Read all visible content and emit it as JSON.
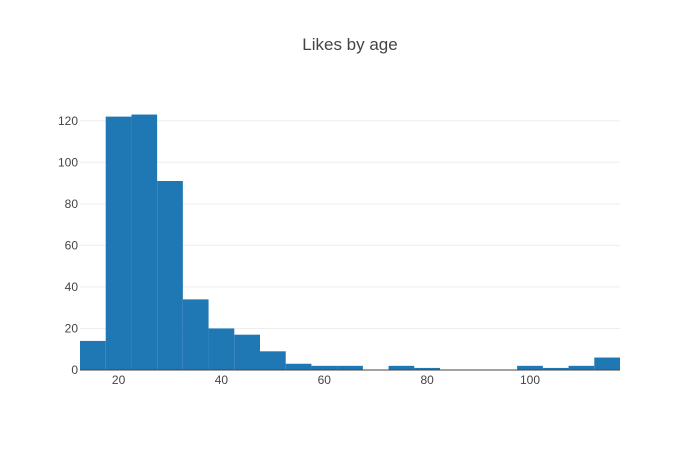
{
  "chart_data": {
    "type": "bar",
    "title": "Likes by age",
    "xlabel": "",
    "ylabel": "",
    "bar_color": "#1f77b4",
    "bin_width": 5,
    "x_range": [
      12.5,
      117.5
    ],
    "ylim": [
      0,
      130
    ],
    "x_ticks": [
      20,
      40,
      60,
      80,
      100
    ],
    "y_ticks": [
      0,
      20,
      40,
      60,
      80,
      100,
      120
    ],
    "bins": [
      {
        "start": 12.5,
        "count": 14
      },
      {
        "start": 17.5,
        "count": 122
      },
      {
        "start": 22.5,
        "count": 123
      },
      {
        "start": 27.5,
        "count": 91
      },
      {
        "start": 32.5,
        "count": 34
      },
      {
        "start": 37.5,
        "count": 20
      },
      {
        "start": 42.5,
        "count": 17
      },
      {
        "start": 47.5,
        "count": 9
      },
      {
        "start": 52.5,
        "count": 3
      },
      {
        "start": 57.5,
        "count": 2
      },
      {
        "start": 62.5,
        "count": 2
      },
      {
        "start": 67.5,
        "count": 0
      },
      {
        "start": 72.5,
        "count": 2
      },
      {
        "start": 77.5,
        "count": 1
      },
      {
        "start": 82.5,
        "count": 0
      },
      {
        "start": 87.5,
        "count": 0
      },
      {
        "start": 92.5,
        "count": 0
      },
      {
        "start": 97.5,
        "count": 2
      },
      {
        "start": 102.5,
        "count": 1
      },
      {
        "start": 107.5,
        "count": 2
      },
      {
        "start": 112.5,
        "count": 6
      }
    ],
    "grid": true,
    "legend": "none"
  }
}
